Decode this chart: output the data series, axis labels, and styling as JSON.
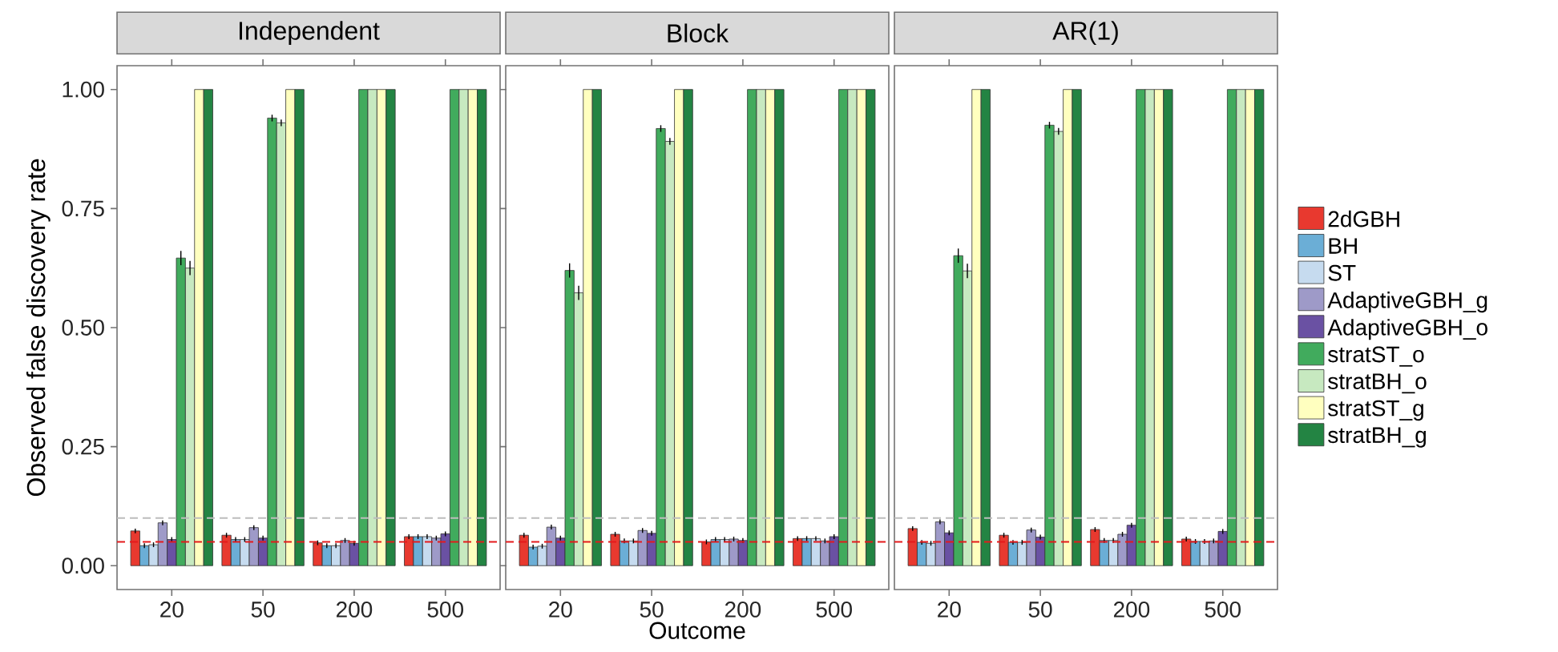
{
  "chart_data": [
    {
      "type": "bar",
      "title": "Independent",
      "ylabel": "Observed false discovery rate",
      "categories": [
        "20",
        "50",
        "200",
        "500"
      ],
      "ylim": [
        -0.05,
        1.05
      ],
      "yticks": [
        {
          "value": 0,
          "label": "0.00"
        },
        {
          "value": 0.25,
          "label": "0.25"
        },
        {
          "value": 0.5,
          "label": "0.50"
        },
        {
          "value": 0.75,
          "label": "0.75"
        },
        {
          "value": 1,
          "label": "1.00"
        }
      ],
      "ref_lines": [
        {
          "axis": "y",
          "value": 0.05,
          "color": "#e41a1c",
          "line_style": "dashed"
        },
        {
          "axis": "y",
          "value": 0.1,
          "color": "#bdbdbd",
          "line_style": "dashed"
        }
      ],
      "series": [
        {
          "color": "#e8392f",
          "values": [
            0.073,
            0.064,
            0.048,
            0.061
          ],
          "errors": [
            0.005,
            0.005,
            0.005,
            0.005
          ]
        },
        {
          "color": "#6baed6",
          "values": [
            0.042,
            0.055,
            0.042,
            0.061
          ],
          "errors": [
            0.005,
            0.005,
            0.005,
            0.005
          ]
        },
        {
          "color": "#c6dbef",
          "values": [
            0.044,
            0.055,
            0.042,
            0.061
          ],
          "errors": [
            0.005,
            0.005,
            0.005,
            0.005
          ]
        },
        {
          "color": "#9e9ac8",
          "values": [
            0.09,
            0.08,
            0.053,
            0.058
          ],
          "errors": [
            0.005,
            0.005,
            0.005,
            0.005
          ]
        },
        {
          "color": "#6a51a3",
          "values": [
            0.055,
            0.058,
            0.047,
            0.067
          ],
          "errors": [
            0.005,
            0.005,
            0.005,
            0.005
          ]
        },
        {
          "color": "#41ab5d",
          "values": [
            0.646,
            0.94,
            1,
            1
          ],
          "errors": [
            0.015,
            0.007,
            null,
            null
          ]
        },
        {
          "color": "#c7e9c0",
          "values": [
            0.625,
            0.93,
            1,
            1
          ],
          "errors": [
            0.015,
            0.007,
            null,
            null
          ]
        },
        {
          "color": "#ffffbf",
          "values": [
            1,
            1,
            1,
            1
          ]
        },
        {
          "color": "#238443",
          "values": [
            1,
            1,
            1,
            1
          ]
        }
      ]
    },
    {
      "type": "bar",
      "title": "Block",
      "xlabel": "Outcome",
      "categories": [
        "20",
        "50",
        "200",
        "500"
      ],
      "ylim": [
        -0.05,
        1.05
      ],
      "tick_labels": "x",
      "ref_lines": [
        {
          "axis": "y",
          "value": 0.05,
          "color": "#e41a1c",
          "line_style": "dashed"
        },
        {
          "axis": "y",
          "value": 0.1,
          "color": "#bdbdbd",
          "line_style": "dashed"
        }
      ],
      "series": [
        {
          "color": "#e8392f",
          "values": [
            0.064,
            0.066,
            0.05,
            0.057
          ],
          "errors": [
            0.005,
            0.005,
            0.005,
            0.005
          ]
        },
        {
          "color": "#6baed6",
          "values": [
            0.039,
            0.052,
            0.055,
            0.057
          ],
          "errors": [
            0.005,
            0.005,
            0.005,
            0.005
          ]
        },
        {
          "color": "#c6dbef",
          "values": [
            0.041,
            0.052,
            0.055,
            0.057
          ],
          "errors": [
            0.005,
            0.005,
            0.005,
            0.005
          ]
        },
        {
          "color": "#9e9ac8",
          "values": [
            0.081,
            0.074,
            0.056,
            0.052
          ],
          "errors": [
            0.005,
            0.005,
            0.005,
            0.005
          ]
        },
        {
          "color": "#6a51a3",
          "values": [
            0.058,
            0.068,
            0.053,
            0.061
          ],
          "errors": [
            0.005,
            0.005,
            0.005,
            0.005
          ]
        },
        {
          "color": "#41ab5d",
          "values": [
            0.62,
            0.918,
            1,
            1
          ],
          "errors": [
            0.015,
            0.007,
            null,
            null
          ]
        },
        {
          "color": "#c7e9c0",
          "values": [
            0.573,
            0.891,
            1,
            1
          ],
          "errors": [
            0.015,
            0.007,
            null,
            null
          ]
        },
        {
          "color": "#ffffbf",
          "values": [
            1,
            1,
            1,
            1
          ]
        },
        {
          "color": "#238443",
          "values": [
            1,
            1,
            1,
            1
          ]
        }
      ]
    },
    {
      "type": "bar",
      "title": "AR(1)",
      "categories": [
        "20",
        "50",
        "200",
        "500"
      ],
      "ylim": [
        -0.05,
        1.05
      ],
      "tick_labels": "x",
      "legend": "right",
      "ref_lines": [
        {
          "axis": "y",
          "value": 0.05,
          "color": "#e41a1c",
          "line_style": "dashed"
        },
        {
          "axis": "y",
          "value": 0.1,
          "color": "#bdbdbd",
          "line_style": "dashed"
        }
      ],
      "series": [
        {
          "name": "2dGBH",
          "color": "#e8392f",
          "values": [
            0.078,
            0.064,
            0.076,
            0.056
          ],
          "errors": [
            0.005,
            0.005,
            0.005,
            0.005
          ]
        },
        {
          "name": "BH",
          "color": "#6baed6",
          "values": [
            0.049,
            0.049,
            0.053,
            0.051
          ],
          "errors": [
            0.005,
            0.005,
            0.005,
            0.005
          ]
        },
        {
          "name": "ST",
          "color": "#c6dbef",
          "values": [
            0.047,
            0.049,
            0.053,
            0.051
          ],
          "errors": [
            0.005,
            0.005,
            0.005,
            0.005
          ]
        },
        {
          "name": "AdaptiveGBH_g",
          "color": "#9e9ac8",
          "values": [
            0.092,
            0.075,
            0.066,
            0.052
          ],
          "errors": [
            0.005,
            0.005,
            0.005,
            0.005
          ]
        },
        {
          "name": "AdaptiveGBH_o",
          "color": "#6a51a3",
          "values": [
            0.069,
            0.06,
            0.085,
            0.072
          ],
          "errors": [
            0.005,
            0.005,
            0.005,
            0.005
          ]
        },
        {
          "name": "stratST_o",
          "color": "#41ab5d",
          "values": [
            0.651,
            0.925,
            1,
            1
          ],
          "errors": [
            0.015,
            0.007,
            null,
            null
          ]
        },
        {
          "name": "stratBH_o",
          "color": "#c7e9c0",
          "values": [
            0.619,
            0.912,
            1,
            1
          ],
          "errors": [
            0.015,
            0.007,
            null,
            null
          ]
        },
        {
          "name": "stratST_g",
          "color": "#ffffbf",
          "values": [
            1,
            1,
            1,
            1
          ]
        },
        {
          "name": "stratBH_g",
          "color": "#238443",
          "values": [
            1,
            1,
            1,
            1
          ]
        }
      ]
    }
  ]
}
